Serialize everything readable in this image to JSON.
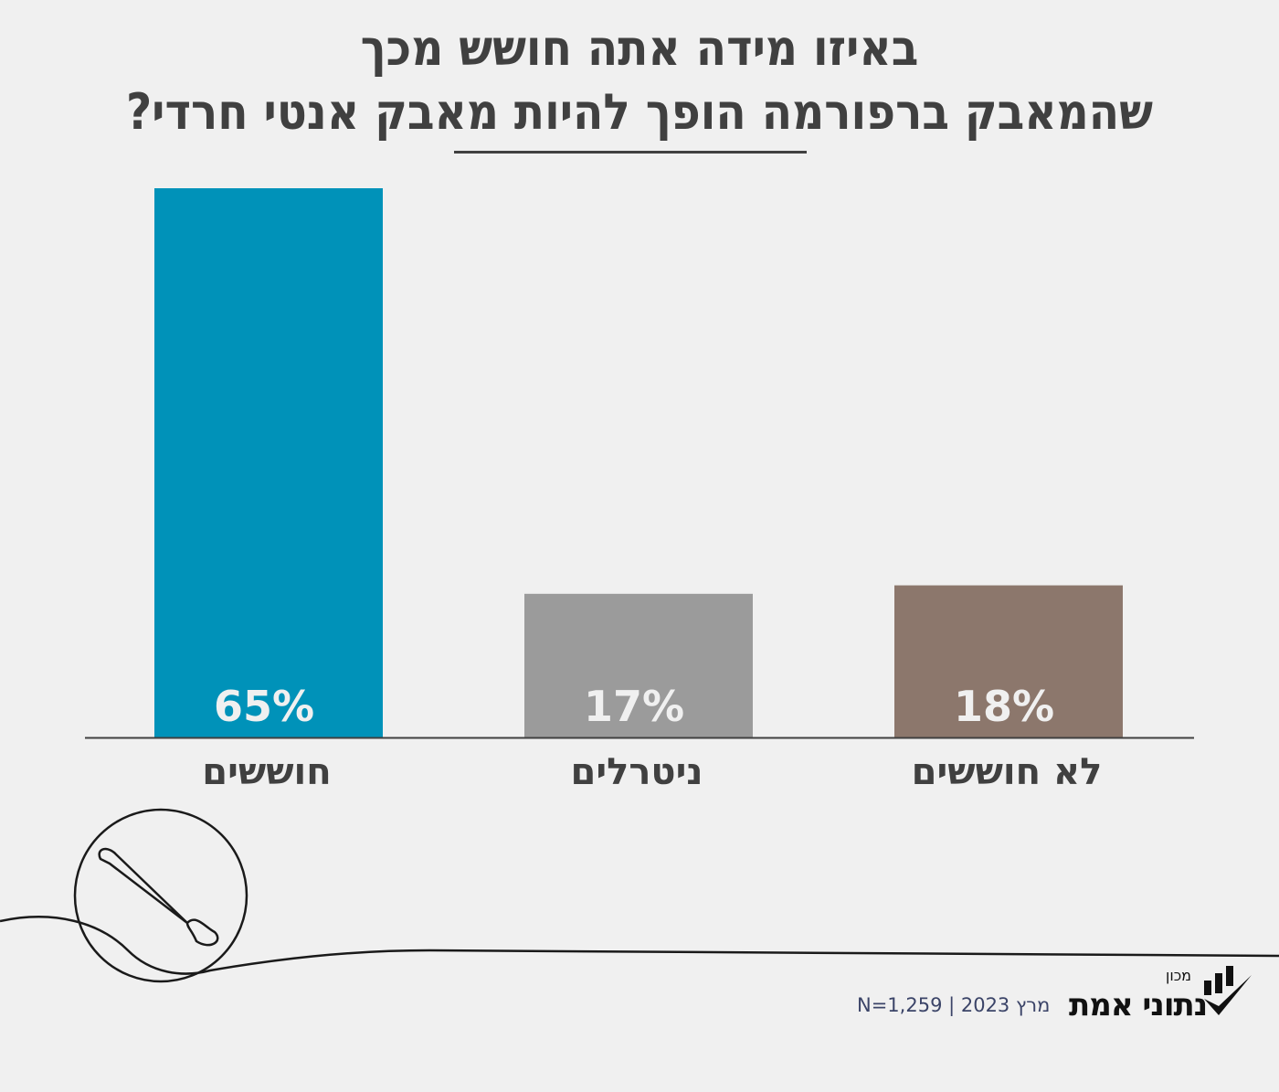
{
  "chart_data": {
    "type": "bar",
    "title_lines": [
      "באיזו מידה אתה חושש מכך",
      "שהמאבק ברפורמה הופך להיות מאבק אנטי חרדי?"
    ],
    "categories": [
      "חוששים",
      "ניטרלים",
      "לא חוששים"
    ],
    "values": [
      65,
      17,
      18
    ],
    "data_labels": [
      "65%",
      "17%",
      "18%"
    ],
    "colors": [
      "#0092b9",
      "#9b9b9b",
      "#8c776c"
    ],
    "ylim": [
      0,
      65
    ],
    "grid": false,
    "legend": "none"
  },
  "footer": {
    "meta": "N=1,259  |  2023 מרץ",
    "logo_sub": "מכון",
    "logo_main": "נתוני אמת"
  },
  "colors": {
    "background": "#f0f0f0",
    "text": "#404040",
    "footer_text": "#3b4468"
  }
}
